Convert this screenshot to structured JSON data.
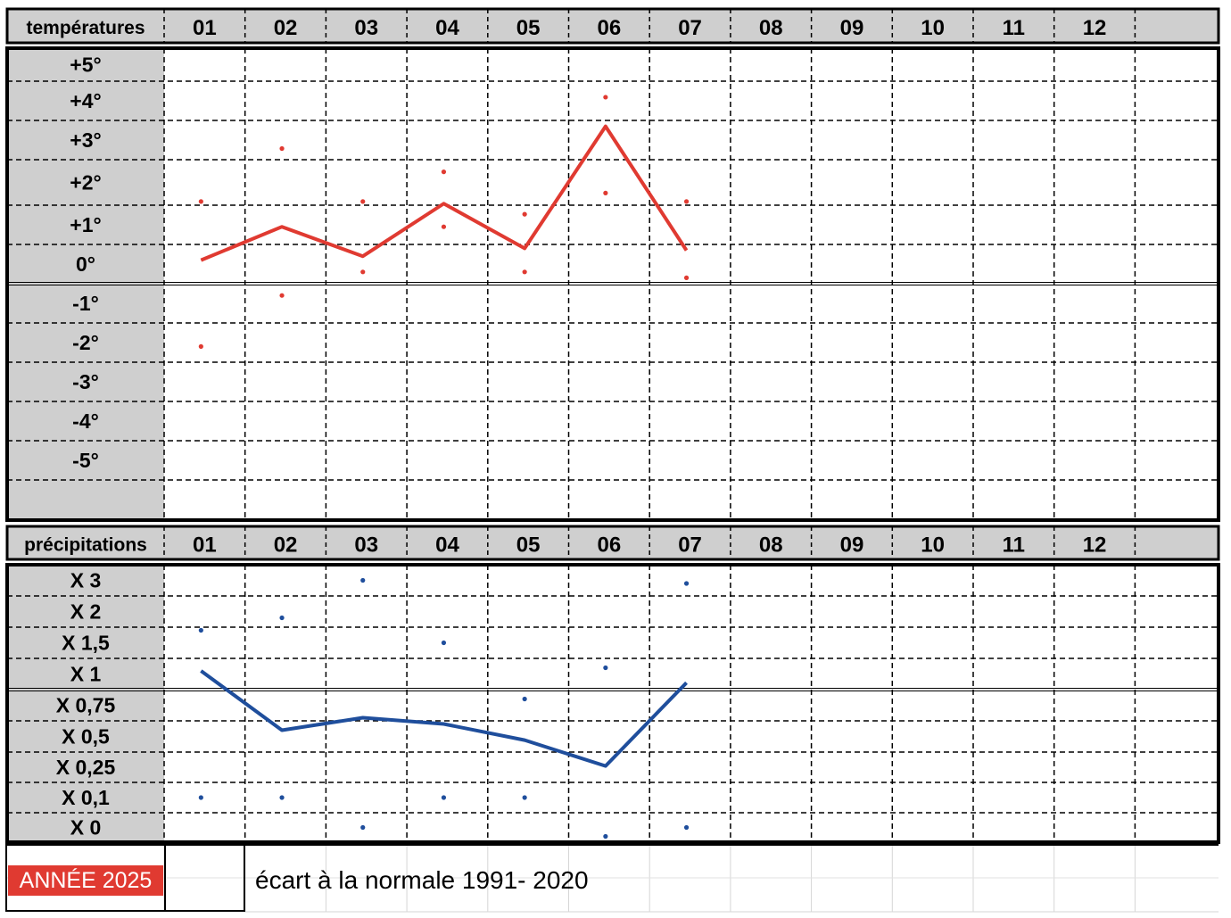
{
  "header_temp": "températures",
  "header_precip": "précipitations",
  "months": [
    "01",
    "02",
    "03",
    "04",
    "05",
    "06",
    "07",
    "08",
    "09",
    "10",
    "11",
    "12"
  ],
  "footer": {
    "year_label": "ANNÉE 2025",
    "caption": "écart à la normale 1991- 2020"
  },
  "colors": {
    "temperature": "#e03a31",
    "precipitation": "#1f4e9c",
    "header_bg": "#cfcfcf",
    "year_badge": "#e03a31"
  },
  "chart_data": [
    {
      "type": "line",
      "name": "temperature",
      "categories": [
        "01",
        "02",
        "03",
        "04",
        "05",
        "06",
        "07"
      ],
      "ylabels": [
        "+5°",
        "+4°",
        "+3°",
        "+2°",
        "+1°",
        "0°",
        "-1°",
        "-2°",
        "-3°",
        "-4°",
        "-5°"
      ],
      "ylim": [
        -5,
        5
      ],
      "series": [
        {
          "values": [
            0.1,
            0.95,
            0.2,
            1.5,
            0.4,
            3.35,
            0.35
          ]
        }
      ],
      "markers": [
        {
          "x": "01",
          "y": 1.55
        },
        {
          "x": "01",
          "y": -2.1
        },
        {
          "x": "02",
          "y": 2.8
        },
        {
          "x": "02",
          "y": -0.8
        },
        {
          "x": "03",
          "y": 1.55
        },
        {
          "x": "03",
          "y": -0.2
        },
        {
          "x": "04",
          "y": 2.25
        },
        {
          "x": "04",
          "y": 0.95
        },
        {
          "x": "05",
          "y": 1.25
        },
        {
          "x": "05",
          "y": -0.2
        },
        {
          "x": "06",
          "y": 4.1
        },
        {
          "x": "06",
          "y": 1.75
        },
        {
          "x": "07",
          "y": 1.55
        },
        {
          "x": "07",
          "y": -0.35
        }
      ],
      "grid": true
    },
    {
      "type": "line",
      "name": "precipitation",
      "categories": [
        "01",
        "02",
        "03",
        "04",
        "05",
        "06",
        "07"
      ],
      "ylabels": [
        "X 3",
        "X 2",
        "X 1,5",
        "X 1",
        "X 0,75",
        "X 0,5",
        "X 0,25",
        "X 0,1",
        "X 0"
      ],
      "series": [
        {
          "values": [
            1.05,
            0.55,
            0.65,
            0.6,
            0.47,
            0.26,
            0.93
          ]
        }
      ],
      "markers": [
        {
          "x": "01",
          "y": 1.7
        },
        {
          "x": "01",
          "y": 0.1
        },
        {
          "x": "02",
          "y": 1.9
        },
        {
          "x": "02",
          "y": 0.1
        },
        {
          "x": "03",
          "y": 3.0
        },
        {
          "x": "03",
          "y": 0.0
        },
        {
          "x": "04",
          "y": 1.5
        },
        {
          "x": "04",
          "y": 0.1
        },
        {
          "x": "05",
          "y": 0.8
        },
        {
          "x": "05",
          "y": 0.1
        },
        {
          "x": "06",
          "y": 1.1
        },
        {
          "x": "06",
          "y": -0.1
        },
        {
          "x": "07",
          "y": 2.9
        },
        {
          "x": "07",
          "y": 0.0
        }
      ],
      "grid": true
    }
  ]
}
